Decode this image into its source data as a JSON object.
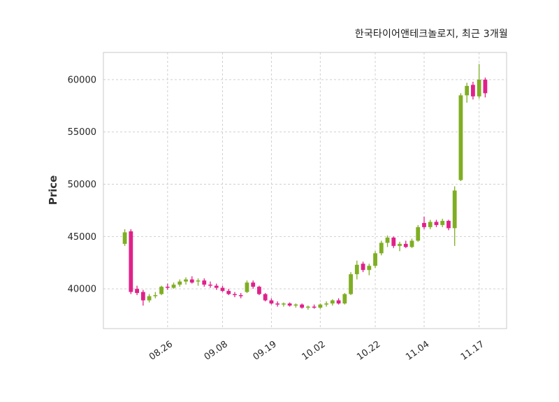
{
  "page": {
    "background": "#ffffff"
  },
  "chart_data": {
    "type": "candlestick",
    "title": "한국타이어앤테크놀로지, 최근 3개월",
    "xlabel": "",
    "ylabel": "Price",
    "yticks": [
      40000,
      45000,
      50000,
      55000,
      60000
    ],
    "ylim": [
      36200,
      62600
    ],
    "xticks": [
      {
        "index": 7,
        "label": "08.26"
      },
      {
        "index": 16,
        "label": "09.08"
      },
      {
        "index": 24,
        "label": "09.19"
      },
      {
        "index": 32,
        "label": "10.02"
      },
      {
        "index": 41,
        "label": "10.22"
      },
      {
        "index": 49,
        "label": "11.04"
      },
      {
        "index": 58,
        "label": "11.17"
      }
    ],
    "x_slots": 66,
    "x_offset": 3.5,
    "grid": "dashed",
    "legend_position": "none",
    "up_color": "#7fae23",
    "down_color": "#e0218a",
    "grid_color": "#cfcfcf",
    "axis_color": "#c9c9c9",
    "text_color": "#262626",
    "candles": [
      [
        44300,
        45700,
        44100,
        45400
      ],
      [
        45500,
        45700,
        39500,
        39700
      ],
      [
        40000,
        40300,
        39400,
        39600
      ],
      [
        39700,
        39900,
        38400,
        38900
      ],
      [
        38900,
        39500,
        38700,
        39300
      ],
      [
        39300,
        39700,
        39100,
        39400
      ],
      [
        39500,
        40300,
        39400,
        40200
      ],
      [
        40200,
        40500,
        39900,
        40100
      ],
      [
        40100,
        40600,
        40000,
        40400
      ],
      [
        40400,
        40900,
        40200,
        40700
      ],
      [
        40700,
        41100,
        40400,
        40900
      ],
      [
        40900,
        41200,
        40500,
        40600
      ],
      [
        40700,
        41000,
        40300,
        40800
      ],
      [
        40800,
        41000,
        40200,
        40400
      ],
      [
        40400,
        40700,
        40100,
        40300
      ],
      [
        40300,
        40500,
        39900,
        40100
      ],
      [
        40100,
        40300,
        39700,
        39800
      ],
      [
        39800,
        40000,
        39400,
        39500
      ],
      [
        39500,
        39700,
        39200,
        39400
      ],
      [
        39400,
        39600,
        39100,
        39300
      ],
      [
        39700,
        40800,
        39600,
        40600
      ],
      [
        40600,
        40800,
        40000,
        40200
      ],
      [
        40200,
        40300,
        39400,
        39500
      ],
      [
        39500,
        39600,
        38800,
        38900
      ],
      [
        38900,
        39100,
        38500,
        38600
      ],
      [
        38600,
        38800,
        38300,
        38500
      ],
      [
        38500,
        38700,
        38300,
        38600
      ],
      [
        38600,
        38700,
        38300,
        38400
      ],
      [
        38400,
        38600,
        38200,
        38500
      ],
      [
        38500,
        38600,
        38100,
        38200
      ],
      [
        38200,
        38400,
        38000,
        38300
      ],
      [
        38300,
        38500,
        38100,
        38200
      ],
      [
        38200,
        38600,
        38100,
        38500
      ],
      [
        38500,
        38800,
        38300,
        38600
      ],
      [
        38600,
        39000,
        38400,
        38900
      ],
      [
        38900,
        39100,
        38500,
        38600
      ],
      [
        38600,
        39600,
        38500,
        39500
      ],
      [
        39500,
        41600,
        39400,
        41400
      ],
      [
        41400,
        42700,
        40900,
        42300
      ],
      [
        42400,
        42600,
        41600,
        41800
      ],
      [
        41800,
        42400,
        41300,
        42200
      ],
      [
        42200,
        43600,
        42000,
        43400
      ],
      [
        43400,
        44600,
        43200,
        44400
      ],
      [
        44400,
        45100,
        44000,
        44900
      ],
      [
        44900,
        45000,
        43900,
        44100
      ],
      [
        44100,
        44500,
        43600,
        44300
      ],
      [
        44300,
        44600,
        43900,
        44000
      ],
      [
        44000,
        44800,
        43900,
        44600
      ],
      [
        44600,
        46100,
        44500,
        45900
      ],
      [
        46300,
        46900,
        45700,
        45900
      ],
      [
        45900,
        46600,
        45700,
        46400
      ],
      [
        46400,
        46600,
        45900,
        46100
      ],
      [
        46100,
        46700,
        45900,
        46500
      ],
      [
        46500,
        46600,
        45600,
        45800
      ],
      [
        45800,
        49800,
        44100,
        49400
      ],
      [
        50400,
        58700,
        50300,
        58500
      ],
      [
        58500,
        59700,
        57800,
        59400
      ],
      [
        59500,
        59800,
        58100,
        58400
      ],
      [
        58400,
        61500,
        58200,
        60000
      ],
      [
        60000,
        60200,
        58300,
        58700
      ]
    ]
  }
}
